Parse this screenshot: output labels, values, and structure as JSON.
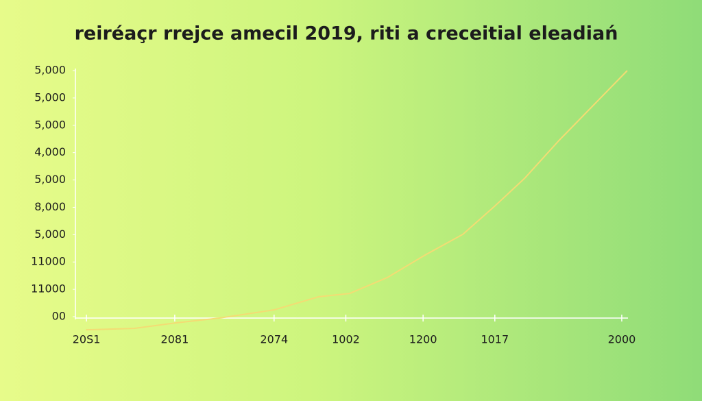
{
  "chart_data": {
    "type": "line",
    "title": "reiréaçr rrejce amecil 2019, riti a creceitial eleadiań",
    "x": [
      1.9,
      10.6,
      18.1,
      26.1,
      36.0,
      44.1,
      49.7,
      56.5,
      63.4,
      70.2,
      75.8,
      81.4,
      87.6,
      100
    ],
    "series": [
      {
        "color": "#f3dc74",
        "values": [
          -0.48,
          -0.43,
          -0.23,
          -0.05,
          0.25,
          0.73,
          0.85,
          1.43,
          2.26,
          3.01,
          4.01,
          5.06,
          6.44,
          9.0
        ]
      }
    ],
    "xlim": [
      0,
      100
    ],
    "xticks": [
      {
        "value": 2,
        "label": "20S1"
      },
      {
        "value": 18,
        "label": "2081"
      },
      {
        "value": 36,
        "label": "2074"
      },
      {
        "value": 49,
        "label": "1002"
      },
      {
        "value": 63,
        "label": "1200"
      },
      {
        "value": 76,
        "label": "1017"
      },
      {
        "value": 99,
        "label": "2000"
      }
    ],
    "ylim": [
      0,
      9
    ],
    "yticks": [
      {
        "value": 0,
        "label": "00"
      },
      {
        "value": 1,
        "label": "11000"
      },
      {
        "value": 2,
        "label": "11000"
      },
      {
        "value": 3,
        "label": "5,000"
      },
      {
        "value": 4,
        "label": "8,000"
      },
      {
        "value": 5,
        "label": "5,000"
      },
      {
        "value": 6,
        "label": "4,000"
      },
      {
        "value": 7,
        "label": "5,000"
      },
      {
        "value": 8,
        "label": "5,000"
      },
      {
        "value": 9,
        "label": "5,000"
      }
    ]
  }
}
